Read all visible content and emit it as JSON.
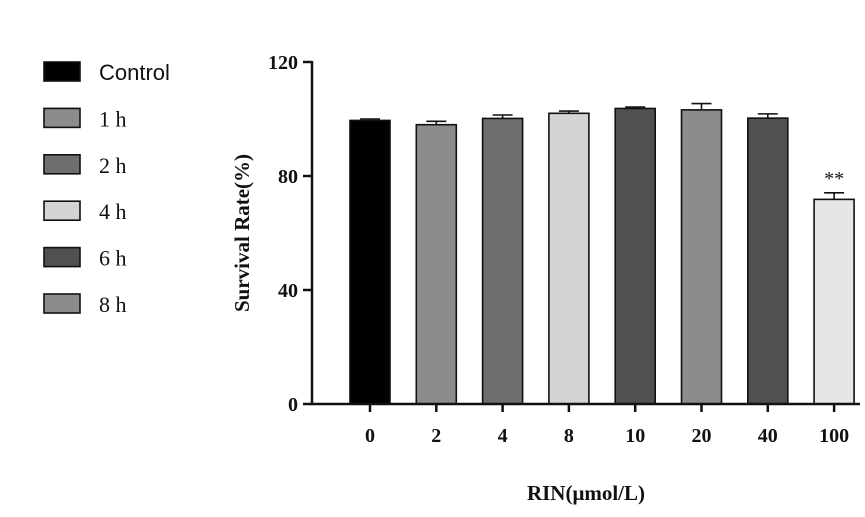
{
  "chart_data": {
    "type": "bar",
    "xlabel": "RIN(μmol/L)",
    "ylabel": "Survival Rate(%)",
    "ylim": [
      0,
      120
    ],
    "yticks": [
      0,
      40,
      80,
      120
    ],
    "categories": [
      "0",
      "2",
      "4",
      "8",
      "10",
      "20",
      "40",
      "100"
    ],
    "values": [
      99.5,
      98,
      100.2,
      102,
      103.7,
      103.2,
      100.3,
      71.8
    ],
    "errors": [
      0.5,
      1.2,
      1.2,
      0.8,
      0.5,
      2.2,
      1.5,
      2.3
    ],
    "bar_colors": [
      "#000000",
      "#8c8c8c",
      "#6e6e6e",
      "#d4d4d4",
      "#505050",
      "#8c8c8c",
      "#505050",
      "#e6e6e6"
    ],
    "annotations": [
      {
        "category": "100",
        "text": "**"
      }
    ],
    "legend": {
      "placement": "left",
      "entries": [
        {
          "label": "Control",
          "color": "#000000"
        },
        {
          "label": "1 h",
          "color": "#8c8c8c"
        },
        {
          "label": "2 h",
          "color": "#6e6e6e"
        },
        {
          "label": "4 h",
          "color": "#d4d4d4"
        },
        {
          "label": "6 h",
          "color": "#505050"
        },
        {
          "label": "8 h",
          "color": "#8c8c8c"
        }
      ]
    }
  }
}
